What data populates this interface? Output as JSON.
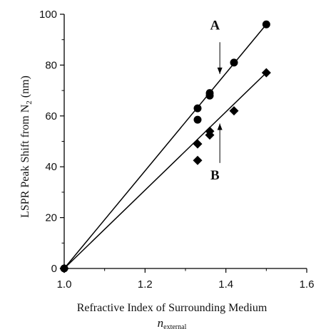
{
  "chart_data": {
    "type": "scatter",
    "xlabel": "Refractive Index of Surrounding Medium",
    "xlabel_sub_main": "n",
    "xlabel_sub_sub": "external",
    "ylabel_main": "LSPR Peak Shift from N",
    "ylabel_sub": "2",
    "ylabel_unit": " (nm)",
    "xlim": [
      1.0,
      1.6
    ],
    "ylim": [
      0,
      100
    ],
    "x_ticks": [
      1.0,
      1.2,
      1.4,
      1.6
    ],
    "x_tick_labels": [
      "1.0",
      "1.2",
      "1.4",
      "1.6"
    ],
    "y_ticks": [
      0,
      20,
      40,
      60,
      80,
      100
    ],
    "y_tick_labels": [
      "0",
      "20",
      "40",
      "60",
      "80",
      "100"
    ],
    "grid": false,
    "series": [
      {
        "name": "A",
        "marker": "circle",
        "color": "#000000",
        "points": [
          [
            1.0,
            0
          ],
          [
            1.33,
            63
          ],
          [
            1.33,
            58.5
          ],
          [
            1.36,
            68
          ],
          [
            1.36,
            69
          ],
          [
            1.42,
            81
          ],
          [
            1.5,
            96
          ]
        ],
        "fit": [
          [
            1.0,
            0
          ],
          [
            1.5,
            96
          ]
        ]
      },
      {
        "name": "B",
        "marker": "diamond",
        "color": "#000000",
        "points": [
          [
            1.0,
            0
          ],
          [
            1.33,
            49
          ],
          [
            1.33,
            42.5
          ],
          [
            1.36,
            52.5
          ],
          [
            1.36,
            54
          ],
          [
            1.42,
            62
          ],
          [
            1.5,
            77
          ]
        ],
        "fit": [
          [
            1.0,
            0
          ],
          [
            1.5,
            77
          ]
        ]
      }
    ],
    "annotations": [
      {
        "label": "A",
        "text_at": [
          1.373,
          94
        ],
        "arrow_from": [
          1.385,
          89
        ],
        "arrow_to": [
          1.385,
          76.5
        ]
      },
      {
        "label": "B",
        "text_at": [
          1.373,
          35
        ],
        "arrow_from": [
          1.385,
          41.5
        ],
        "arrow_to": [
          1.385,
          57
        ]
      }
    ]
  }
}
